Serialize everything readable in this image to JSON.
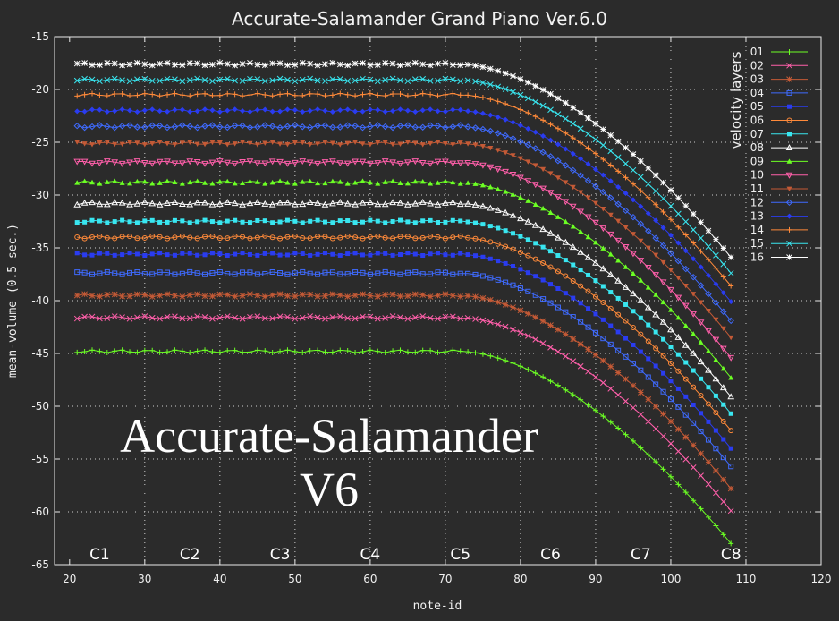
{
  "chart_data": {
    "type": "line",
    "title": "Accurate-Salamander Grand Piano Ver.6.0",
    "xlabel": "note-id",
    "ylabel": "mean-volume (0.5 sec.)",
    "xlim": [
      18,
      120
    ],
    "ylim": [
      -65,
      -15
    ],
    "x_ticks": [
      20,
      30,
      40,
      50,
      60,
      70,
      80,
      90,
      100,
      110,
      120
    ],
    "y_ticks": [
      -15,
      -20,
      -25,
      -30,
      -35,
      -40,
      -45,
      -50,
      -55,
      -60,
      -65
    ],
    "grid": true,
    "grid_x": [
      30,
      40,
      50,
      60,
      70,
      80,
      90,
      100,
      110
    ],
    "grid_y": [
      -20,
      -25,
      -30,
      -35,
      -40,
      -45,
      -50,
      -55,
      -60
    ],
    "octave_markers": [
      {
        "label": "C1",
        "x": 24
      },
      {
        "label": "C2",
        "x": 36
      },
      {
        "label": "C3",
        "x": 48
      },
      {
        "label": "C4",
        "x": 60
      },
      {
        "label": "C5",
        "x": 72
      },
      {
        "label": "C6",
        "x": 84
      },
      {
        "label": "C7",
        "x": 96
      },
      {
        "label": "C8",
        "x": 108
      }
    ],
    "legend_title": "velocity layers",
    "legend_position": "top-right",
    "watermark": [
      "Accurate-Salamander",
      "V6"
    ],
    "x_range": [
      21,
      108
    ],
    "series_shape": "each layer is flat at its plateau value up to note 72, then falls smoothly to its value at note 108",
    "knee": 72,
    "curve_exponent": 1.7,
    "series": [
      {
        "name": "01",
        "marker": "plus",
        "color": "#6cff24",
        "plateau": -44.8,
        "end": -63.0
      },
      {
        "name": "02",
        "marker": "x",
        "color": "#ff5faa",
        "plateau": -41.6,
        "end": -59.9
      },
      {
        "name": "03",
        "marker": "star",
        "color": "#c45a36",
        "plateau": -39.5,
        "end": -57.8
      },
      {
        "name": "04",
        "marker": "square",
        "color": "#3f6bff",
        "plateau": -37.4,
        "end": -55.7
      },
      {
        "name": "05",
        "marker": "filled-square",
        "color": "#2a3cf0",
        "plateau": -35.6,
        "end": -54.0
      },
      {
        "name": "06",
        "marker": "circle",
        "color": "#ff8a3a",
        "plateau": -34.0,
        "end": -52.3
      },
      {
        "name": "07",
        "marker": "filled-square",
        "color": "#39e6f0",
        "plateau": -32.5,
        "end": -50.7
      },
      {
        "name": "08",
        "marker": "triangle",
        "color": "#ffffff",
        "plateau": -30.8,
        "end": -49.1
      },
      {
        "name": "09",
        "marker": "filled-triangle",
        "color": "#6cff24",
        "plateau": -28.8,
        "end": -47.3
      },
      {
        "name": "10",
        "marker": "triangle-down",
        "color": "#ff5faa",
        "plateau": -26.9,
        "end": -45.4
      },
      {
        "name": "11",
        "marker": "filled-triangle-down",
        "color": "#c45a36",
        "plateau": -25.1,
        "end": -43.5
      },
      {
        "name": "12",
        "marker": "diamond",
        "color": "#3f6bff",
        "plateau": -23.5,
        "end": -41.9
      },
      {
        "name": "13",
        "marker": "filled-diamond",
        "color": "#2a3cf0",
        "plateau": -22.0,
        "end": -40.1
      },
      {
        "name": "14",
        "marker": "plus",
        "color": "#ff8a3a",
        "plateau": -20.5,
        "end": -38.6
      },
      {
        "name": "15",
        "marker": "x",
        "color": "#39e6f0",
        "plateau": -19.1,
        "end": -37.4
      },
      {
        "name": "16",
        "marker": "star",
        "color": "#ffffff",
        "plateau": -17.6,
        "end": -35.9
      }
    ]
  }
}
